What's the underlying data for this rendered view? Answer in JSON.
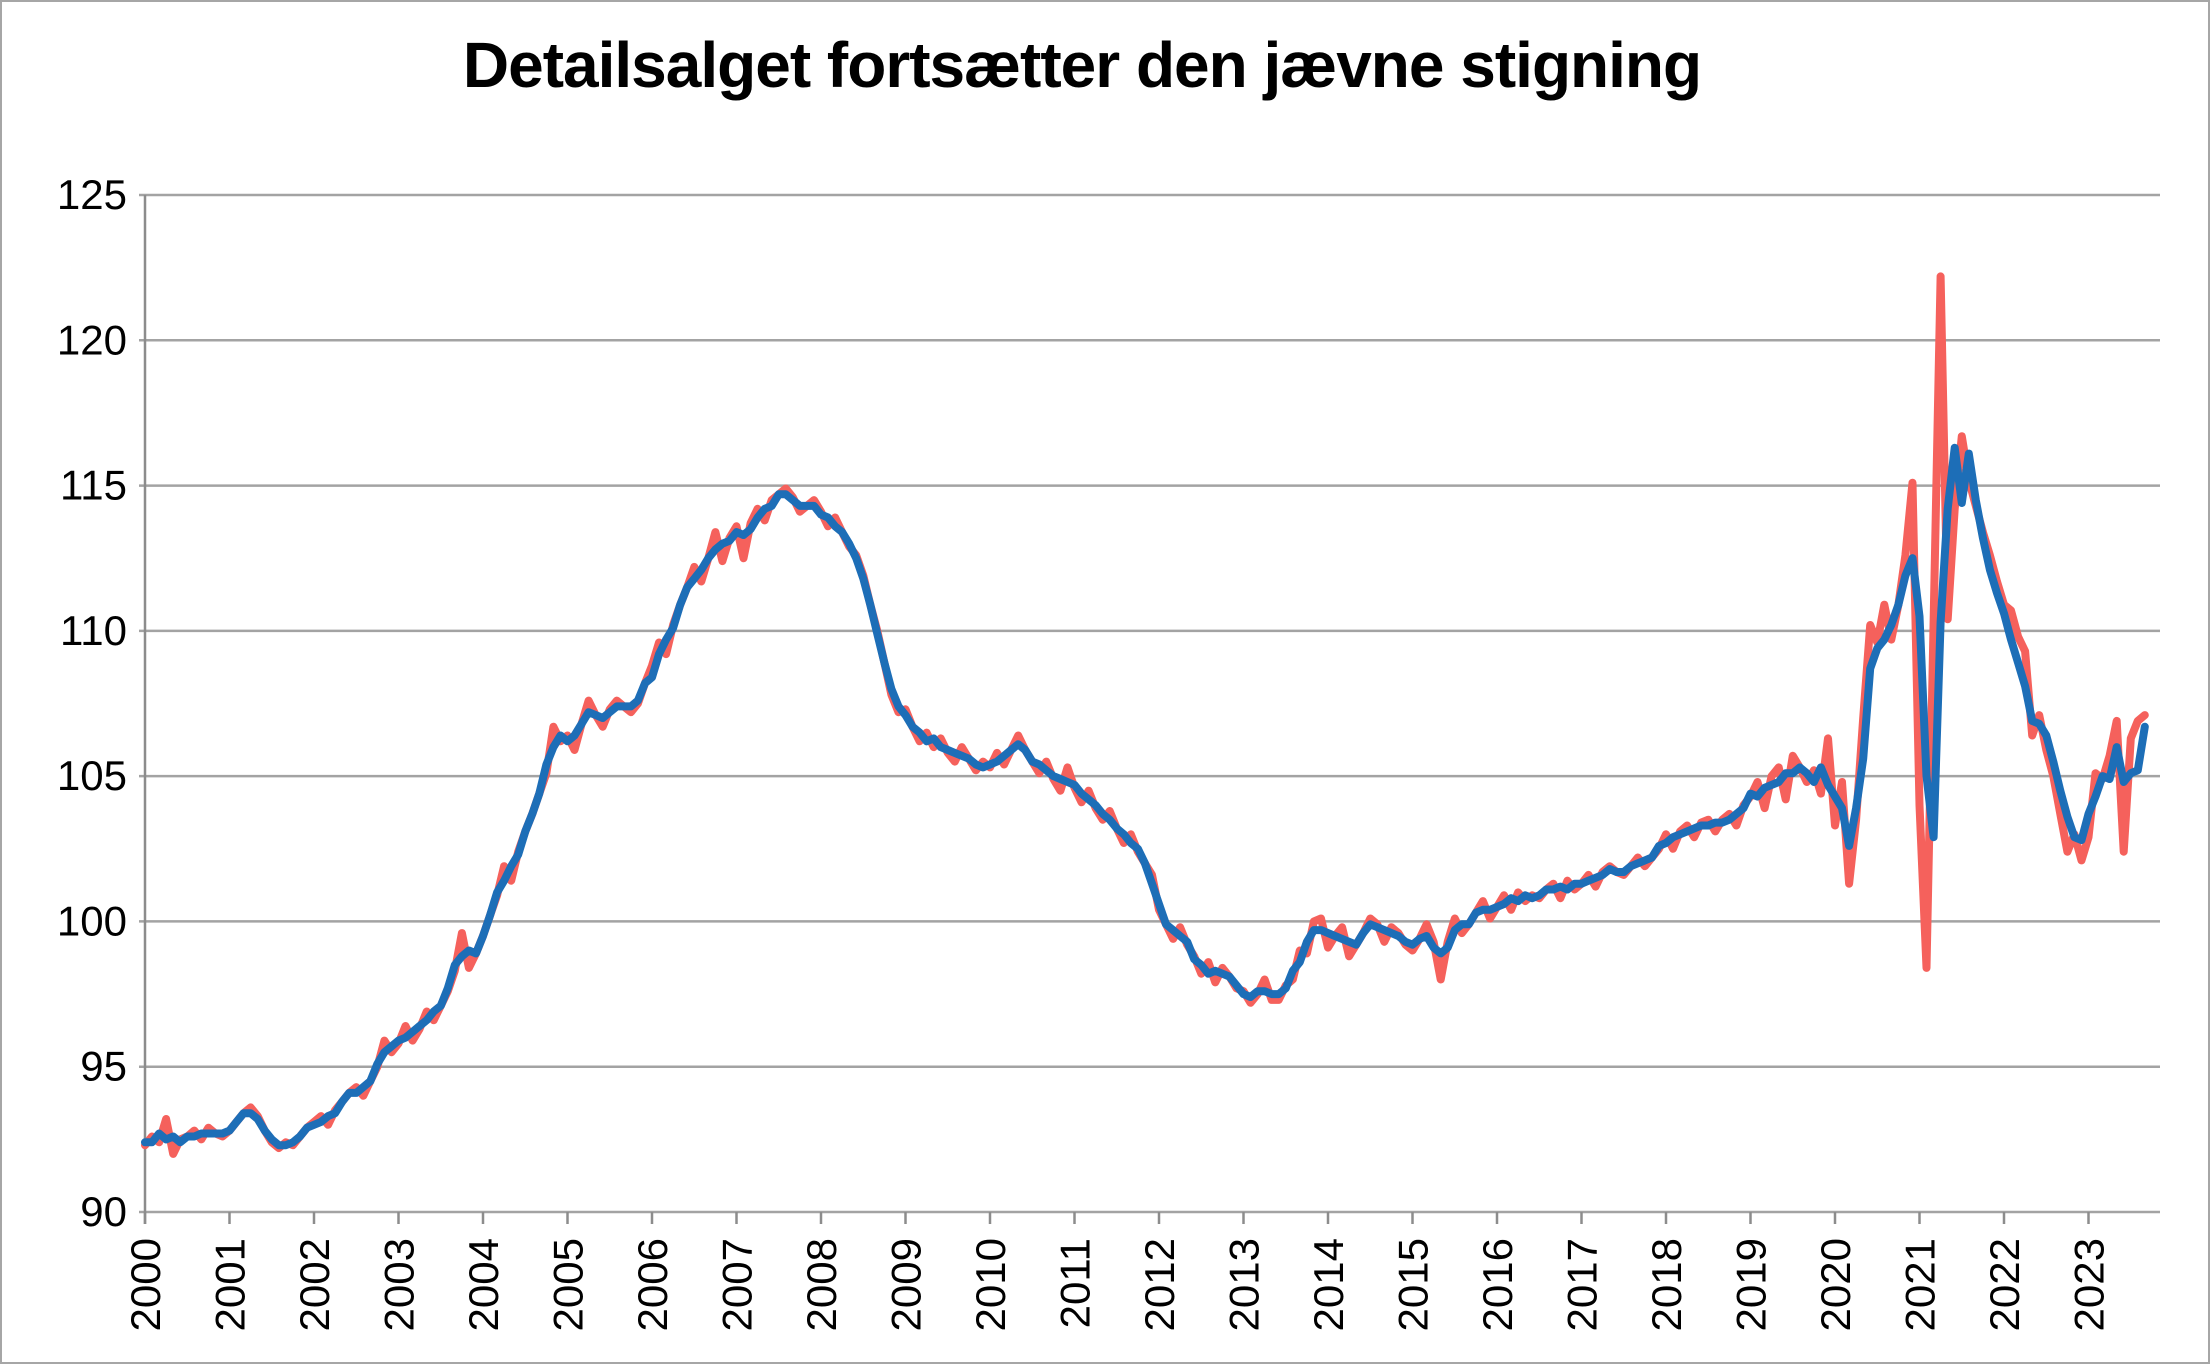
{
  "title": "Detailsalget fortsætter den jævne stigning",
  "colors": {
    "raw_series": "#f5615c",
    "smooth_series": "#1d6eb7",
    "grid": "#a3a3a3",
    "axis": "#8c8c8c",
    "text": "#000000",
    "frame": "#a6a6a6",
    "background": "#ffffff"
  },
  "chart_data": {
    "type": "line",
    "title": "Detailsalget fortsætter den jævne stigning",
    "xlabel": "",
    "ylabel": "",
    "x_start": "2000-01",
    "x_end": "2023-09",
    "frequency": "monthly",
    "x_tick_labels": [
      "2000",
      "2001",
      "2002",
      "2003",
      "2004",
      "2005",
      "2006",
      "2007",
      "2008",
      "2009",
      "2010",
      "2011",
      "2012",
      "2013",
      "2014",
      "2015",
      "2016",
      "2017",
      "2018",
      "2019",
      "2020",
      "2021",
      "2022",
      "2023"
    ],
    "y_ticks": [
      125,
      120,
      115,
      110,
      105,
      100,
      95,
      90
    ],
    "ylim": [
      90,
      125
    ],
    "grid": "horizontal",
    "legend_position": "none",
    "series": [
      {
        "id": "red",
        "color": "#f5615c",
        "values": [
          92.3,
          92.6,
          92.4,
          93.2,
          92.0,
          92.5,
          92.6,
          92.8,
          92.5,
          92.9,
          92.7,
          92.6,
          92.8,
          93.1,
          93.4,
          93.6,
          93.3,
          92.8,
          92.4,
          92.2,
          92.4,
          92.3,
          92.6,
          92.9,
          93.1,
          93.3,
          93.0,
          93.5,
          93.8,
          94.1,
          94.3,
          94.0,
          94.5,
          95.0,
          95.9,
          95.5,
          95.8,
          96.4,
          95.9,
          96.3,
          96.9,
          96.6,
          97.1,
          97.6,
          98.3,
          99.6,
          98.4,
          98.9,
          99.5,
          100.2,
          100.9,
          101.9,
          101.4,
          102.4,
          103.1,
          103.7,
          104.4,
          105.1,
          106.7,
          106.2,
          106.4,
          105.9,
          106.8,
          107.6,
          107.1,
          106.7,
          107.3,
          107.6,
          107.4,
          107.2,
          107.5,
          108.2,
          108.8,
          109.6,
          109.2,
          110.2,
          110.9,
          111.5,
          112.2,
          111.7,
          112.5,
          113.4,
          112.4,
          113.2,
          113.6,
          112.5,
          113.7,
          114.2,
          113.8,
          114.5,
          114.7,
          114.9,
          114.6,
          114.1,
          114.3,
          114.5,
          114.1,
          113.6,
          113.9,
          113.4,
          112.9,
          112.6,
          111.9,
          110.9,
          110.0,
          108.9,
          107.8,
          107.2,
          107.3,
          106.7,
          106.2,
          106.5,
          106.0,
          106.3,
          105.8,
          105.5,
          106.0,
          105.6,
          105.2,
          105.5,
          105.3,
          105.8,
          105.4,
          105.9,
          106.4,
          105.9,
          105.5,
          105.1,
          105.5,
          104.9,
          104.5,
          105.3,
          104.6,
          104.1,
          104.5,
          103.9,
          103.5,
          103.8,
          103.2,
          102.7,
          103.0,
          102.4,
          102.0,
          101.6,
          100.4,
          99.9,
          99.4,
          99.8,
          99.2,
          98.8,
          98.2,
          98.6,
          97.9,
          98.4,
          98.1,
          97.7,
          97.6,
          97.2,
          97.5,
          98.0,
          97.3,
          97.3,
          97.8,
          98.0,
          99.0,
          98.9,
          100.0,
          100.1,
          99.1,
          99.5,
          99.8,
          98.8,
          99.2,
          99.6,
          100.1,
          99.9,
          99.3,
          99.8,
          99.6,
          99.2,
          99.0,
          99.4,
          99.9,
          99.3,
          98.0,
          99.3,
          100.1,
          99.6,
          99.9,
          100.3,
          100.7,
          100.1,
          100.5,
          100.9,
          100.4,
          101.0,
          100.7,
          100.9,
          100.8,
          101.1,
          101.3,
          100.8,
          101.4,
          101.1,
          101.3,
          101.6,
          101.2,
          101.7,
          101.9,
          101.7,
          101.6,
          101.9,
          102.2,
          101.9,
          102.2,
          102.5,
          103.0,
          102.5,
          103.1,
          103.3,
          102.9,
          103.4,
          103.5,
          103.1,
          103.5,
          103.7,
          103.3,
          104.0,
          104.3,
          104.8,
          103.9,
          105.0,
          105.3,
          104.2,
          105.7,
          105.3,
          104.8,
          105.2,
          104.4,
          106.3,
          103.3,
          104.8,
          101.3,
          103.5,
          107.0,
          110.2,
          109.6,
          110.9,
          109.7,
          110.9,
          112.6,
          115.1,
          104.0,
          98.4,
          110.3,
          122.2,
          110.4,
          114.2,
          116.7,
          115.2,
          114.3,
          113.4,
          112.6,
          111.7,
          110.9,
          110.7,
          109.8,
          109.3,
          106.4,
          107.1,
          105.9,
          105.0,
          103.7,
          102.4,
          103.0,
          102.1,
          102.9,
          105.1,
          104.9,
          105.7,
          106.9,
          102.4,
          106.3,
          106.9,
          107.1
        ]
      },
      {
        "id": "blue",
        "color": "#1d6eb7",
        "values": [
          92.4,
          92.4,
          92.7,
          92.5,
          92.6,
          92.4,
          92.6,
          92.6,
          92.7,
          92.7,
          92.7,
          92.7,
          92.8,
          93.1,
          93.4,
          93.4,
          93.2,
          92.8,
          92.5,
          92.3,
          92.3,
          92.4,
          92.6,
          92.9,
          93.0,
          93.1,
          93.3,
          93.4,
          93.8,
          94.1,
          94.1,
          94.3,
          94.5,
          95.1,
          95.5,
          95.7,
          95.9,
          96.0,
          96.2,
          96.4,
          96.6,
          96.9,
          97.1,
          97.7,
          98.5,
          98.8,
          99.0,
          98.9,
          99.5,
          100.2,
          101.0,
          101.4,
          101.9,
          102.3,
          103.1,
          103.7,
          104.4,
          105.4,
          106.0,
          106.4,
          106.2,
          106.4,
          106.8,
          107.2,
          107.1,
          107.0,
          107.2,
          107.4,
          107.4,
          107.4,
          107.6,
          108.2,
          108.4,
          109.2,
          109.7,
          110.1,
          110.9,
          111.5,
          111.8,
          112.1,
          112.5,
          112.8,
          113.0,
          113.1,
          113.4,
          113.3,
          113.5,
          113.9,
          114.2,
          114.3,
          114.7,
          114.7,
          114.5,
          114.3,
          114.3,
          114.3,
          114.0,
          113.9,
          113.6,
          113.4,
          113.0,
          112.5,
          111.8,
          110.9,
          109.9,
          108.9,
          108.0,
          107.4,
          107.1,
          106.7,
          106.5,
          106.2,
          106.3,
          106.0,
          105.9,
          105.8,
          105.7,
          105.6,
          105.4,
          105.3,
          105.4,
          105.5,
          105.7,
          105.9,
          106.1,
          105.9,
          105.5,
          105.4,
          105.2,
          105.0,
          104.9,
          104.8,
          104.7,
          104.4,
          104.2,
          104.0,
          103.7,
          103.5,
          103.2,
          103.0,
          102.7,
          102.5,
          102.0,
          101.3,
          100.6,
          99.9,
          99.7,
          99.5,
          99.3,
          98.7,
          98.5,
          98.2,
          98.3,
          98.2,
          98.1,
          97.8,
          97.5,
          97.4,
          97.6,
          97.6,
          97.5,
          97.5,
          97.7,
          98.3,
          98.6,
          99.3,
          99.7,
          99.7,
          99.6,
          99.5,
          99.4,
          99.3,
          99.2,
          99.6,
          99.9,
          99.8,
          99.7,
          99.6,
          99.5,
          99.3,
          99.2,
          99.4,
          99.5,
          99.1,
          98.9,
          99.1,
          99.7,
          99.9,
          99.9,
          100.3,
          100.4,
          100.4,
          100.5,
          100.6,
          100.8,
          100.7,
          100.9,
          100.8,
          100.9,
          101.1,
          101.1,
          101.2,
          101.1,
          101.3,
          101.3,
          101.4,
          101.5,
          101.6,
          101.8,
          101.7,
          101.7,
          101.9,
          102.0,
          102.1,
          102.2,
          102.6,
          102.7,
          102.9,
          103.0,
          103.1,
          103.2,
          103.3,
          103.3,
          103.4,
          103.4,
          103.5,
          103.7,
          103.9,
          104.4,
          104.3,
          104.6,
          104.7,
          104.8,
          105.1,
          105.1,
          105.3,
          105.1,
          104.8,
          105.3,
          104.7,
          104.3,
          103.9,
          102.6,
          103.9,
          105.6,
          108.7,
          109.4,
          109.7,
          110.2,
          110.9,
          111.9,
          112.5,
          110.5,
          105.0,
          102.9,
          110.3,
          114.2,
          116.3,
          114.4,
          116.1,
          114.5,
          113.2,
          112.1,
          111.3,
          110.6,
          109.7,
          108.9,
          108.1,
          106.9,
          106.8,
          106.4,
          105.5,
          104.5,
          103.6,
          102.9,
          102.8,
          103.7,
          104.3,
          105.0,
          104.9,
          106.0,
          104.8,
          105.1,
          105.2,
          106.7
        ]
      }
    ]
  }
}
